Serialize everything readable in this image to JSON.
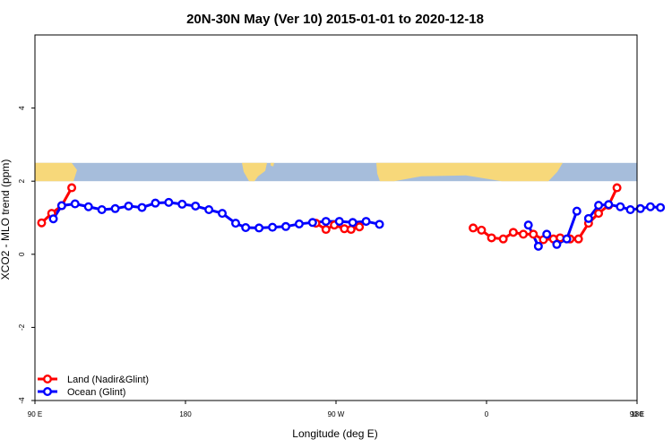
{
  "chart_data": {
    "type": "line",
    "title": "20N-30N May (Ver 10)   2015-01-01 to 2020-12-18",
    "xlabel": "Longitude (deg E)",
    "ylabel": "XCO2 - MLO trend (ppm)",
    "xlim": [
      90,
      450
    ],
    "ylim": [
      -4,
      6
    ],
    "x_ticks": [
      {
        "value": 90,
        "label": "90 E"
      },
      {
        "value": 180,
        "label": "180"
      },
      {
        "value": 270,
        "label": "90 W"
      },
      {
        "value": 360,
        "label": "0"
      },
      {
        "value": 450,
        "label": "90 E"
      },
      {
        "value": 540,
        "label": "180"
      }
    ],
    "y_ticks": [
      {
        "value": -4,
        "label": "-4"
      },
      {
        "value": -2,
        "label": "-2"
      },
      {
        "value": 0,
        "label": "0"
      },
      {
        "value": 2,
        "label": "2"
      },
      {
        "value": 4,
        "label": "4"
      }
    ],
    "legend_position": "bottom-left",
    "map_strip": {
      "y_range": [
        2.0,
        2.5
      ],
      "ocean_color": "#a6bddb",
      "land_color": "#f7d87a"
    },
    "series": [
      {
        "name": "Land (Nadir&Glint)",
        "color": "#ff0000",
        "segments": [
          [
            [
              94,
              0.86
            ],
            [
              100,
              1.12
            ],
            [
              106,
              1.33
            ],
            [
              112,
              1.82
            ]
          ],
          [
            [
              258,
              0.85
            ],
            [
              264,
              0.68
            ],
            [
              269,
              0.8
            ],
            [
              275,
              0.7
            ],
            [
              279,
              0.68
            ],
            [
              284,
              0.75
            ]
          ],
          [
            [
              352,
              0.72
            ],
            [
              357,
              0.66
            ],
            [
              363,
              0.45
            ],
            [
              370,
              0.42
            ],
            [
              376,
              0.6
            ],
            [
              382,
              0.55
            ],
            [
              388,
              0.55
            ],
            [
              394,
              0.4
            ],
            [
              400,
              0.42
            ],
            [
              404,
              0.45
            ],
            [
              410,
              0.42
            ],
            [
              415,
              0.42
            ],
            [
              421,
              0.85
            ],
            [
              427,
              1.12
            ],
            [
              433,
              1.34
            ],
            [
              438,
              1.82
            ]
          ]
        ]
      },
      {
        "name": "Ocean (Glint)",
        "color": "#0000ff",
        "segments": [
          [
            [
              101,
              0.97
            ],
            [
              106,
              1.33
            ],
            [
              114,
              1.38
            ],
            [
              122,
              1.3
            ],
            [
              130,
              1.22
            ],
            [
              138,
              1.25
            ],
            [
              146,
              1.32
            ],
            [
              154,
              1.28
            ],
            [
              162,
              1.4
            ],
            [
              170,
              1.42
            ],
            [
              178,
              1.37
            ],
            [
              186,
              1.32
            ],
            [
              194,
              1.22
            ],
            [
              202,
              1.12
            ],
            [
              210,
              0.85
            ],
            [
              216,
              0.73
            ],
            [
              224,
              0.72
            ],
            [
              232,
              0.74
            ],
            [
              240,
              0.76
            ],
            [
              248,
              0.83
            ],
            [
              256,
              0.87
            ],
            [
              264,
              0.9
            ],
            [
              272,
              0.9
            ],
            [
              280,
              0.87
            ],
            [
              288,
              0.9
            ],
            [
              296,
              0.82
            ]
          ],
          [
            [
              385,
              0.8
            ],
            [
              391,
              0.22
            ],
            [
              396,
              0.55
            ],
            [
              402,
              0.27
            ],
            [
              408,
              0.42
            ],
            [
              414,
              1.18
            ]
          ],
          [
            [
              421,
              0.98
            ],
            [
              427,
              1.34
            ],
            [
              433,
              1.36
            ],
            [
              440,
              1.3
            ],
            [
              446,
              1.22
            ],
            [
              452,
              1.25
            ],
            [
              458,
              1.3
            ],
            [
              464,
              1.28
            ]
          ]
        ]
      }
    ]
  }
}
